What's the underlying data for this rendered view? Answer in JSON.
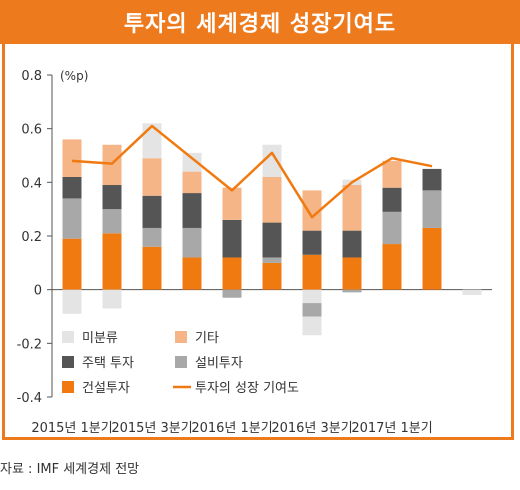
{
  "header": {
    "title": "투자의 세계경제 성장기여도"
  },
  "source": "자료 : IMF 세계경제 전망",
  "colors": {
    "accent": "#ee7a1e",
    "unclassified": "#e4e4e4",
    "other": "#f5b587",
    "housing": "#555555",
    "equipment": "#a8a8a8",
    "construction": "#f07a10",
    "line": "#f07a10"
  },
  "chart_data": {
    "type": "bar",
    "stacked": true,
    "unit_label": "(%p)",
    "ylim": [
      -0.4,
      0.8
    ],
    "yticks": [
      "0.8",
      "0.6",
      "0.4",
      "0.2",
      "0",
      "-0.2",
      "-0.4"
    ],
    "ytick_values": [
      0.8,
      0.6,
      0.4,
      0.2,
      0,
      -0.2,
      -0.4
    ],
    "x_tick_labels": [
      "2015년 1분기",
      "2015년 3분기",
      "2016년 1분기",
      "2016년 3분기",
      "2017년 1분기"
    ],
    "x_tick_indices": [
      0,
      2,
      4,
      6,
      8
    ],
    "n_periods": 11,
    "series": [
      {
        "name": "건설투자",
        "color_key": "construction",
        "values": [
          0.19,
          0.21,
          0.16,
          0.12,
          0.12,
          0.1,
          0.13,
          0.12,
          0.17,
          0.23,
          0.0
        ]
      },
      {
        "name": "설비투자",
        "color_key": "equipment",
        "values": [
          0.15,
          0.09,
          0.07,
          0.11,
          0.0,
          0.02,
          0.0,
          0.0,
          0.12,
          0.14,
          0.0
        ]
      },
      {
        "name": "주택 투자",
        "color_key": "housing",
        "values": [
          0.08,
          0.09,
          0.12,
          0.13,
          0.14,
          0.13,
          0.09,
          0.1,
          0.09,
          0.08,
          0.0
        ]
      },
      {
        "name": "기타",
        "color_key": "other",
        "values": [
          0.14,
          0.15,
          0.14,
          0.08,
          0.12,
          0.17,
          0.15,
          0.17,
          0.1,
          0.0,
          0.0
        ]
      },
      {
        "name": "미분류",
        "color_key": "unclassified",
        "values": [
          0.0,
          0.0,
          0.13,
          0.07,
          0.0,
          0.12,
          0.0,
          0.02,
          0.0,
          0.0,
          0.0
        ]
      }
    ],
    "negative_series": [
      {
        "name": "미분류",
        "color_key": "unclassified",
        "values": [
          -0.09,
          -0.07,
          0.0,
          0.0,
          0.0,
          0.0,
          -0.05,
          0.0,
          0.0,
          0.0,
          0.0
        ]
      },
      {
        "name": "설비투자",
        "color_key": "equipment",
        "values": [
          0.0,
          0.0,
          0.0,
          0.0,
          -0.03,
          0.0,
          -0.05,
          -0.01,
          0.0,
          0.0,
          0.0
        ]
      }
    ],
    "negative_extra": [
      {
        "name": "미분류",
        "color_key": "unclassified",
        "values": [
          0.0,
          0.0,
          0.0,
          0.0,
          0.0,
          0.0,
          -0.07,
          0.0,
          0.0,
          0.0,
          -0.02
        ]
      }
    ],
    "line": {
      "name": "투자의 성장 기여도",
      "color_key": "line",
      "values": [
        0.48,
        0.47,
        0.61,
        0.49,
        0.37,
        0.51,
        0.27,
        0.4,
        0.49,
        0.46
      ]
    },
    "legend": [
      {
        "label": "미분류",
        "color_key": "unclassified",
        "kind": "box"
      },
      {
        "label": "기타",
        "color_key": "other",
        "kind": "box"
      },
      {
        "label": "주택 투자",
        "color_key": "housing",
        "kind": "box"
      },
      {
        "label": "설비투자",
        "color_key": "equipment",
        "kind": "box"
      },
      {
        "label": "건설투자",
        "color_key": "construction",
        "kind": "box"
      },
      {
        "label": "투자의 성장 기여도",
        "color_key": "line",
        "kind": "line"
      }
    ]
  }
}
